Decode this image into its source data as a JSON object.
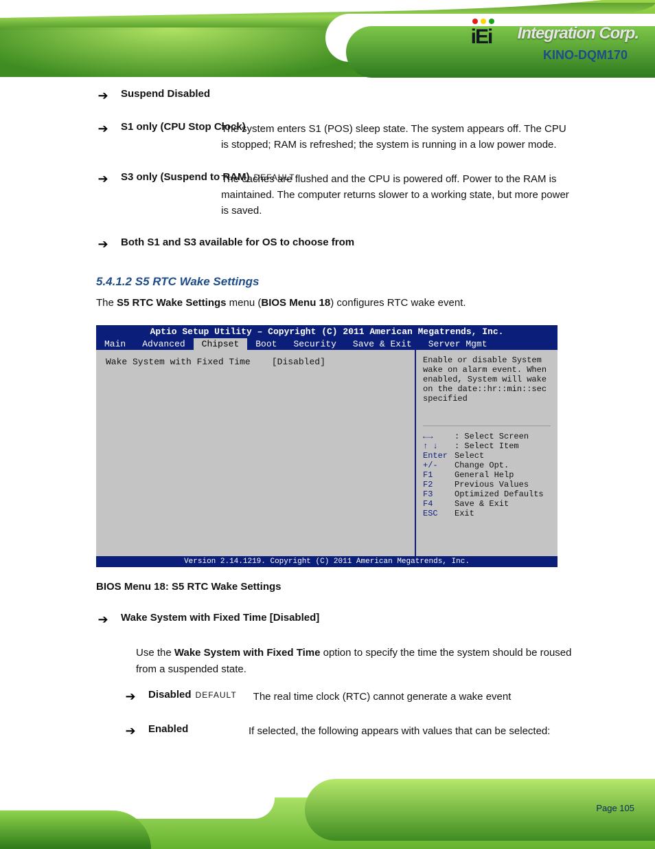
{
  "header": {
    "product": "KINO-DQM170",
    "logo_text": "Integration Corp."
  },
  "footer": {
    "page_label": "Page 105"
  },
  "options_top": [
    {
      "label": "Suspend Disabled",
      "desc": "",
      "default": false
    },
    {
      "label": "S1 only (CPU Stop Clock)",
      "default": false,
      "desc": "The system enters S1 (POS) sleep state. The system appears off. The CPU is stopped; RAM is refreshed; the system is running in a low power mode."
    },
    {
      "label": "S3 only (Suspend to RAM)",
      "default": true,
      "desc": "The caches are flushed and the CPU is powered off. Power to the RAM is maintained. The computer returns slower to a working state, but more power is saved."
    },
    {
      "label": "Both S1 and S3 available for OS to choose from",
      "desc": "",
      "default": false
    }
  ],
  "section": {
    "number": "5.4.1.2",
    "title": "S5 RTC Wake Settings",
    "intro_pre": "The ",
    "intro_bold": "S5 RTC Wake Settings",
    "intro_post": " menu (",
    "intro_ref": "BIOS Menu 18",
    "intro_tail": ") configures RTC wake event."
  },
  "bios": {
    "title": "Aptio Setup Utility – Copyright (C) 2011 American Megatrends, Inc.",
    "tabs": [
      "Main",
      "Advanced",
      "Chipset",
      "Boot",
      "Security",
      "Save & Exit",
      "Server Mgmt"
    ],
    "active_tab": 2,
    "row_label": "Wake System with Fixed Time",
    "row_value": "[Disabled]",
    "hint": "Enable or disable System wake on alarm event. When enabled, System will wake on the date::hr::min::sec specified",
    "keys": [
      {
        "sym": "←→",
        "desc": ": Select Screen"
      },
      {
        "sym": "↑ ↓",
        "desc": ": Select Item"
      },
      {
        "sym": "Enter",
        "desc": "Select"
      },
      {
        "sym": "+/-",
        "desc": "Change Opt."
      },
      {
        "sym": "F1",
        "desc": "General Help"
      },
      {
        "sym": "F2",
        "desc": "Previous Values"
      },
      {
        "sym": "F3",
        "desc": "Optimized Defaults"
      },
      {
        "sym": "F4",
        "desc": "Save & Exit"
      },
      {
        "sym": "ESC",
        "desc": "Exit"
      }
    ],
    "footer": "Version 2.14.1219. Copyright (C) 2011 American Megatrends, Inc.",
    "caption": "BIOS Menu 18: S5 RTC Wake Settings"
  },
  "option_heading": "Wake System with Fixed Time [Disabled]",
  "option_para_pre": "Use the ",
  "option_para_bold": "Wake System with Fixed Time",
  "option_para_post": " option to specify the time the system should be roused from a suspended state.",
  "options_bottom": [
    {
      "label": "Disabled",
      "default": true,
      "desc": "The real time clock (RTC) cannot generate a wake event"
    },
    {
      "label": "Enabled",
      "default": false,
      "desc": "If selected, the following appears with values that can be selected:"
    }
  ]
}
